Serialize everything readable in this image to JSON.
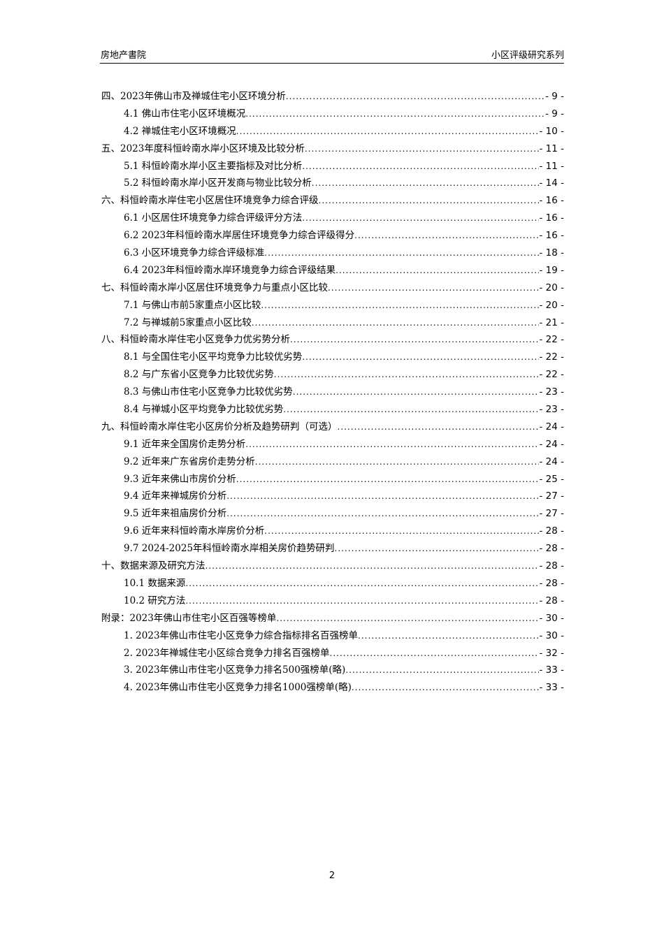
{
  "header": {
    "left": "房地产書院",
    "right": "小区评级研究系列"
  },
  "toc": [
    {
      "level": 1,
      "label": "四、2023年佛山市及禅城住宅小区环境分析",
      "page": "- 9 -"
    },
    {
      "level": 2,
      "label": "4.1 佛山市住宅小区环境概况",
      "page": "- 9 -"
    },
    {
      "level": 2,
      "label": "4.2 禅城住宅小区环境概况",
      "page": "- 10 -"
    },
    {
      "level": 1,
      "label": "五、2023年度科恒岭南水岸小区环境及比较分析",
      "page": "- 11 -"
    },
    {
      "level": 2,
      "label": "5.1 科恒岭南水岸小区主要指标及对比分析",
      "page": "- 11 -"
    },
    {
      "level": 2,
      "label": "5.2 科恒岭南水岸小区开发商与物业比较分析",
      "page": "- 14 -"
    },
    {
      "level": 1,
      "label": "六、科恒岭南水岸住宅小区居住环境竞争力综合评级",
      "page": "- 16 -"
    },
    {
      "level": 2,
      "label": "6.1 小区居住环境竞争力综合评级评分方法",
      "page": "- 16 -"
    },
    {
      "level": 2,
      "label": "6.2 2023年科恒岭南水岸居住环境竞争力综合评级得分",
      "page": "- 16 -"
    },
    {
      "level": 2,
      "label": "6.3 小区环境竞争力综合评级标准",
      "page": "- 18 -"
    },
    {
      "level": 2,
      "label": "6.4 2023年科恒岭南水岸环境竞争力综合评级结果",
      "page": "- 19 -"
    },
    {
      "level": 1,
      "label": "七、科恒岭南水岸小区居住环境竞争力与重点小区比较",
      "page": "- 20 -"
    },
    {
      "level": 2,
      "label": "7.1 与佛山市前5家重点小区比较",
      "page": "- 20 -"
    },
    {
      "level": 2,
      "label": "7.2 与禅城前5家重点小区比较",
      "page": "- 21 -"
    },
    {
      "level": 1,
      "label": "八、科恒岭南水岸住宅小区竞争力优劣势分析",
      "page": "- 22 -"
    },
    {
      "level": 2,
      "label": "8.1 与全国住宅小区平均竞争力比较优劣势",
      "page": "- 22 -"
    },
    {
      "level": 2,
      "label": "8.2 与广东省小区竞争力比较优劣势",
      "page": "- 22 -"
    },
    {
      "level": 2,
      "label": "8.3 与佛山市住宅小区竞争力比较优劣势",
      "page": "- 23 -"
    },
    {
      "level": 2,
      "label": "8.4 与禅城小区平均竞争力比较优劣势",
      "page": "- 23 -"
    },
    {
      "level": 1,
      "label": "九、科恒岭南水岸住宅小区房价分析及趋势研判（可选）",
      "page": "- 24 -"
    },
    {
      "level": 2,
      "label": "9.1 近年来全国房价走势分析",
      "page": "- 24 -"
    },
    {
      "level": 2,
      "label": "9.2 近年来广东省房价走势分析",
      "page": "- 24 -"
    },
    {
      "level": 2,
      "label": "9.3 近年来佛山市房价分析",
      "page": "- 25 -"
    },
    {
      "level": 2,
      "label": "9.4 近年来禅城房价分析",
      "page": "- 27 -"
    },
    {
      "level": 2,
      "label": "9.5 近年来祖庙房价分析",
      "page": "- 27 -"
    },
    {
      "level": 2,
      "label": "9.6 近年来科恒岭南水岸房价分析",
      "page": "- 28 -"
    },
    {
      "level": 2,
      "label": "9.7 2024-2025年科恒岭南水岸相关房价趋势研判",
      "page": "- 28 -"
    },
    {
      "level": 1,
      "label": "十、数据来源及研究方法",
      "page": "- 28 -"
    },
    {
      "level": 2,
      "label": "10.1 数据来源",
      "page": "- 28 -"
    },
    {
      "level": 2,
      "label": "10.2 研究方法",
      "page": "- 28 -"
    },
    {
      "level": 1,
      "label": "附录：2023年佛山市住宅小区百强等榜单",
      "page": "- 30 -"
    },
    {
      "level": 2,
      "label": "1. 2023年佛山市住宅小区竞争力综合指标排名百强榜单",
      "page": "- 30 -"
    },
    {
      "level": 2,
      "label": "2. 2023年禅城住宅小区综合竞争力排名百强榜单",
      "page": "- 32 -"
    },
    {
      "level": 2,
      "label": "3. 2023年佛山市住宅小区竞争力排名500强榜单(略)",
      "page": "- 33 -"
    },
    {
      "level": 2,
      "label": "4. 2023年佛山市住宅小区竞争力排名1000强榜单(略)",
      "page": "- 33 -"
    }
  ],
  "footer": {
    "page_number": "2"
  }
}
